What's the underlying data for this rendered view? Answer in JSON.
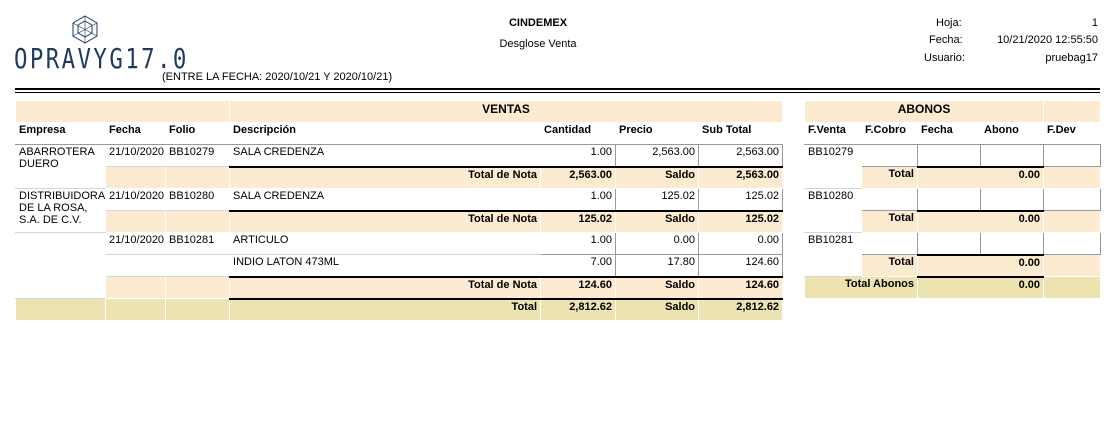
{
  "logo": {
    "text": "OPRAVYG17.0"
  },
  "company": "CINDEMEX",
  "report_title": "Desglose Venta",
  "date_range": "(ENTRE LA FECHA: 2020/10/21 Y 2020/10/21)",
  "meta": {
    "hoja_label": "Hoja:",
    "hoja_value": "1",
    "fecha_label": "Fecha:",
    "fecha_value": "10/21/2020  12:55:50",
    "usuario_label": "Usuario:",
    "usuario_value": "pruebag17"
  },
  "ventas": {
    "title": "VENTAS",
    "headers": [
      "Empresa",
      "Fecha",
      "Folio",
      "Descripción",
      "Cantidad",
      "Precio",
      "Sub Total"
    ],
    "total_nota_label": "Total de Nota",
    "saldo_label": "Saldo",
    "total_label": "Total",
    "notes": [
      {
        "empresa": "ABARROTERA DUERO",
        "rows": [
          {
            "fecha": "21/10/2020",
            "folio": "BB10279",
            "descripcion": "SALA CREDENZA",
            "cantidad": "1.00",
            "precio": "2,563.00",
            "subtotal": "2,563.00"
          }
        ],
        "total_nota": "2,563.00",
        "saldo": "2,563.00"
      },
      {
        "empresa": "DISTRIBUIDORA DE LA ROSA, S.A. DE C.V.",
        "rows": [
          {
            "fecha": "21/10/2020",
            "folio": "BB10280",
            "descripcion": "SALA CREDENZA",
            "cantidad": "1.00",
            "precio": "125.02",
            "subtotal": "125.02"
          }
        ],
        "total_nota": "125.02",
        "saldo": "125.02"
      },
      {
        "empresa": "",
        "rows": [
          {
            "fecha": "21/10/2020",
            "folio": "BB10281",
            "descripcion": "ARTICULO",
            "cantidad": "1.00",
            "precio": "0.00",
            "subtotal": "0.00"
          },
          {
            "fecha": "",
            "folio": "",
            "descripcion": "INDIO LATON 473ML",
            "cantidad": "7.00",
            "precio": "17.80",
            "subtotal": "124.60"
          }
        ],
        "total_nota": "124.60",
        "saldo": "124.60"
      }
    ],
    "grand_total": "2,812.62",
    "grand_saldo": "2,812.62"
  },
  "abonos": {
    "title": "ABONOS",
    "headers": [
      "F.Venta",
      "F.Cobro",
      "Fecha",
      "Abono",
      "F.Dev"
    ],
    "total_label": "Total",
    "total_abonos_label": "Total Abonos",
    "groups": [
      {
        "f_venta": "BB10279",
        "total": "0.00"
      },
      {
        "f_venta": "BB10280",
        "total": "0.00"
      },
      {
        "f_venta": "BB10281",
        "total": "0.00"
      }
    ],
    "total_abonos": "0.00"
  }
}
